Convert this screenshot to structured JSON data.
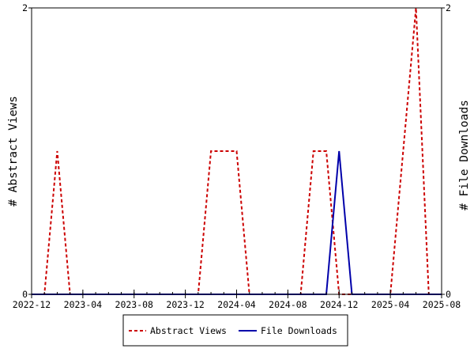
{
  "chart_data": {
    "type": "line",
    "title": "",
    "ylabel_left": "# Abstract Views",
    "ylabel_right": "# File Downloads",
    "ylim_left": [
      0,
      2
    ],
    "ylim_right": [
      0,
      2
    ],
    "y_ticks_left": [
      "0",
      "2"
    ],
    "y_ticks_right": [
      "0",
      "2"
    ],
    "xlim": [
      "2022-12",
      "2025-08"
    ],
    "x_tick_labels": [
      "2022-12",
      "2023-04",
      "2023-08",
      "2023-12",
      "2024-04",
      "2024-08",
      "2024-12",
      "2025-04",
      "2025-08"
    ],
    "x": [
      "2022-12",
      "2023-01",
      "2023-02",
      "2023-03",
      "2023-04",
      "2023-05",
      "2023-06",
      "2023-07",
      "2023-08",
      "2023-09",
      "2023-10",
      "2023-11",
      "2023-12",
      "2024-01",
      "2024-02",
      "2024-03",
      "2024-04",
      "2024-05",
      "2024-06",
      "2024-07",
      "2024-08",
      "2024-09",
      "2024-10",
      "2024-11",
      "2024-12",
      "2025-01",
      "2025-02",
      "2025-03",
      "2025-04",
      "2025-05",
      "2025-06",
      "2025-07",
      "2025-08"
    ],
    "series": [
      {
        "name": "Abstract Views",
        "axis": "left",
        "color": "#cc0000",
        "dash": true,
        "values": [
          0,
          0,
          1,
          0,
          0,
          0,
          0,
          0,
          0,
          0,
          0,
          0,
          0,
          0,
          1,
          1,
          1,
          0,
          0,
          0,
          0,
          0,
          1,
          1,
          0,
          0,
          0,
          0,
          0,
          1,
          2,
          0,
          0
        ]
      },
      {
        "name": "File Downloads",
        "axis": "right",
        "color": "#0000aa",
        "dash": false,
        "values": [
          0,
          0,
          0,
          0,
          0,
          0,
          0,
          0,
          0,
          0,
          0,
          0,
          0,
          0,
          0,
          0,
          0,
          0,
          0,
          0,
          0,
          0,
          0,
          0,
          1,
          0,
          0,
          0,
          0,
          0,
          0,
          0,
          0
        ]
      }
    ],
    "legend": [
      "Abstract Views",
      "File Downloads"
    ],
    "legend_position": "bottom"
  }
}
